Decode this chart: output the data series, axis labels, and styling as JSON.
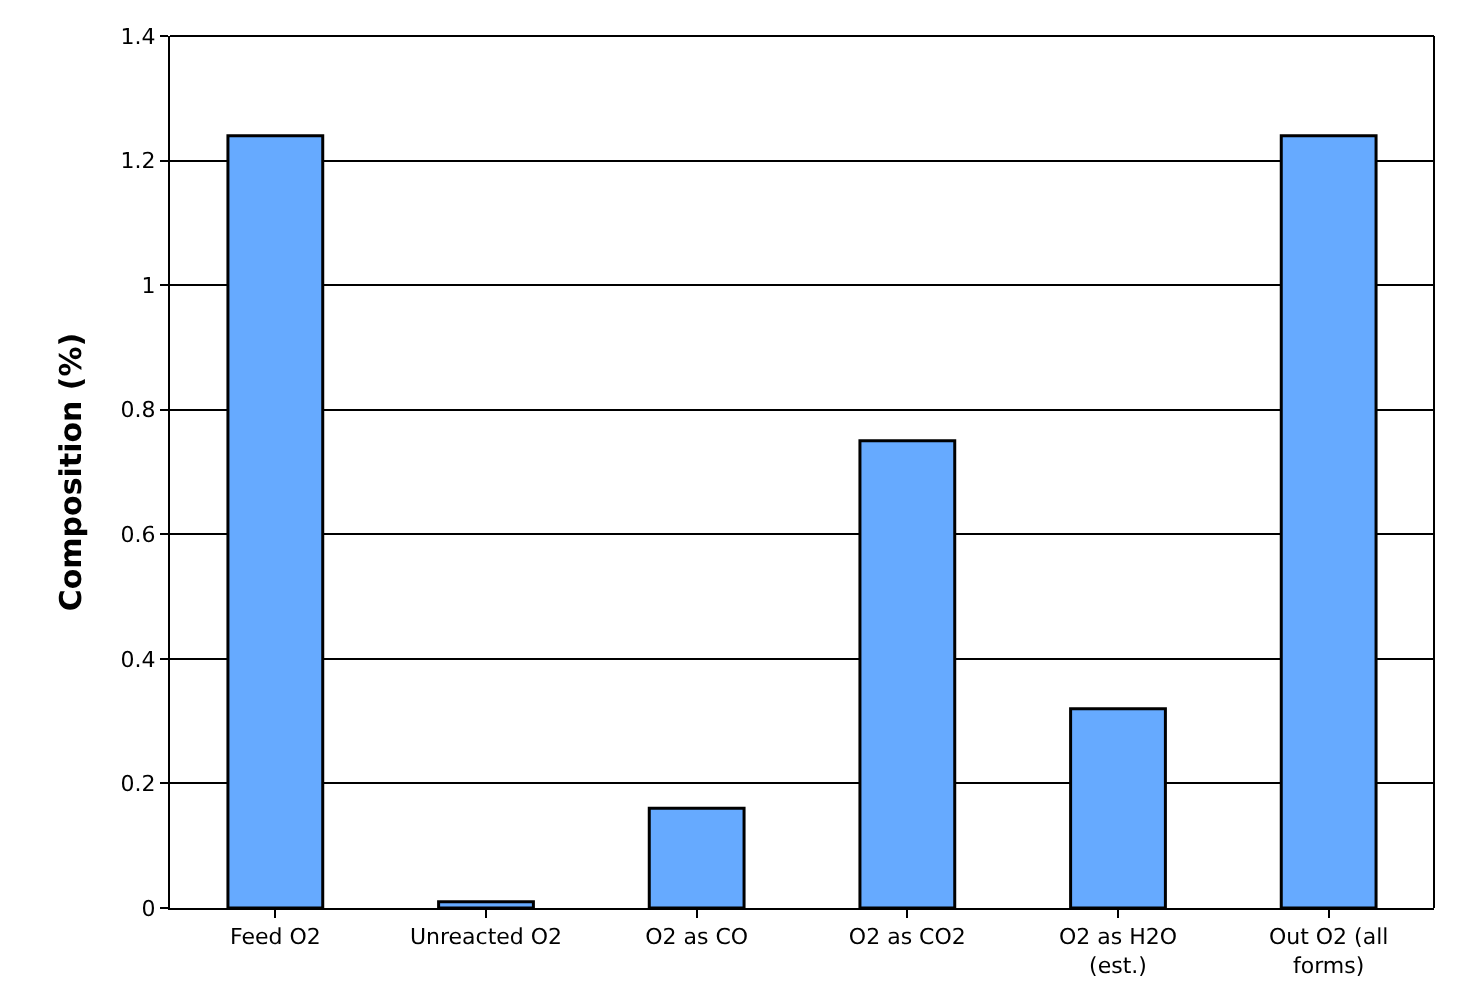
{
  "chart_data": {
    "type": "bar",
    "ylabel": "Composition (%)",
    "categories": [
      "Feed O2",
      "Unreacted O2",
      "O2 as CO",
      "O2 as CO2",
      "O2 as H2O (est.)",
      "Out O2 (all forms)"
    ],
    "values": [
      1.24,
      0.01,
      0.16,
      0.75,
      0.32,
      1.24
    ],
    "color": "#66aaff",
    "ylim": [
      0,
      1.4
    ],
    "yticks": [
      0,
      0.2,
      0.4,
      0.6,
      0.8,
      1,
      1.2,
      1.4
    ],
    "grid": "y"
  }
}
